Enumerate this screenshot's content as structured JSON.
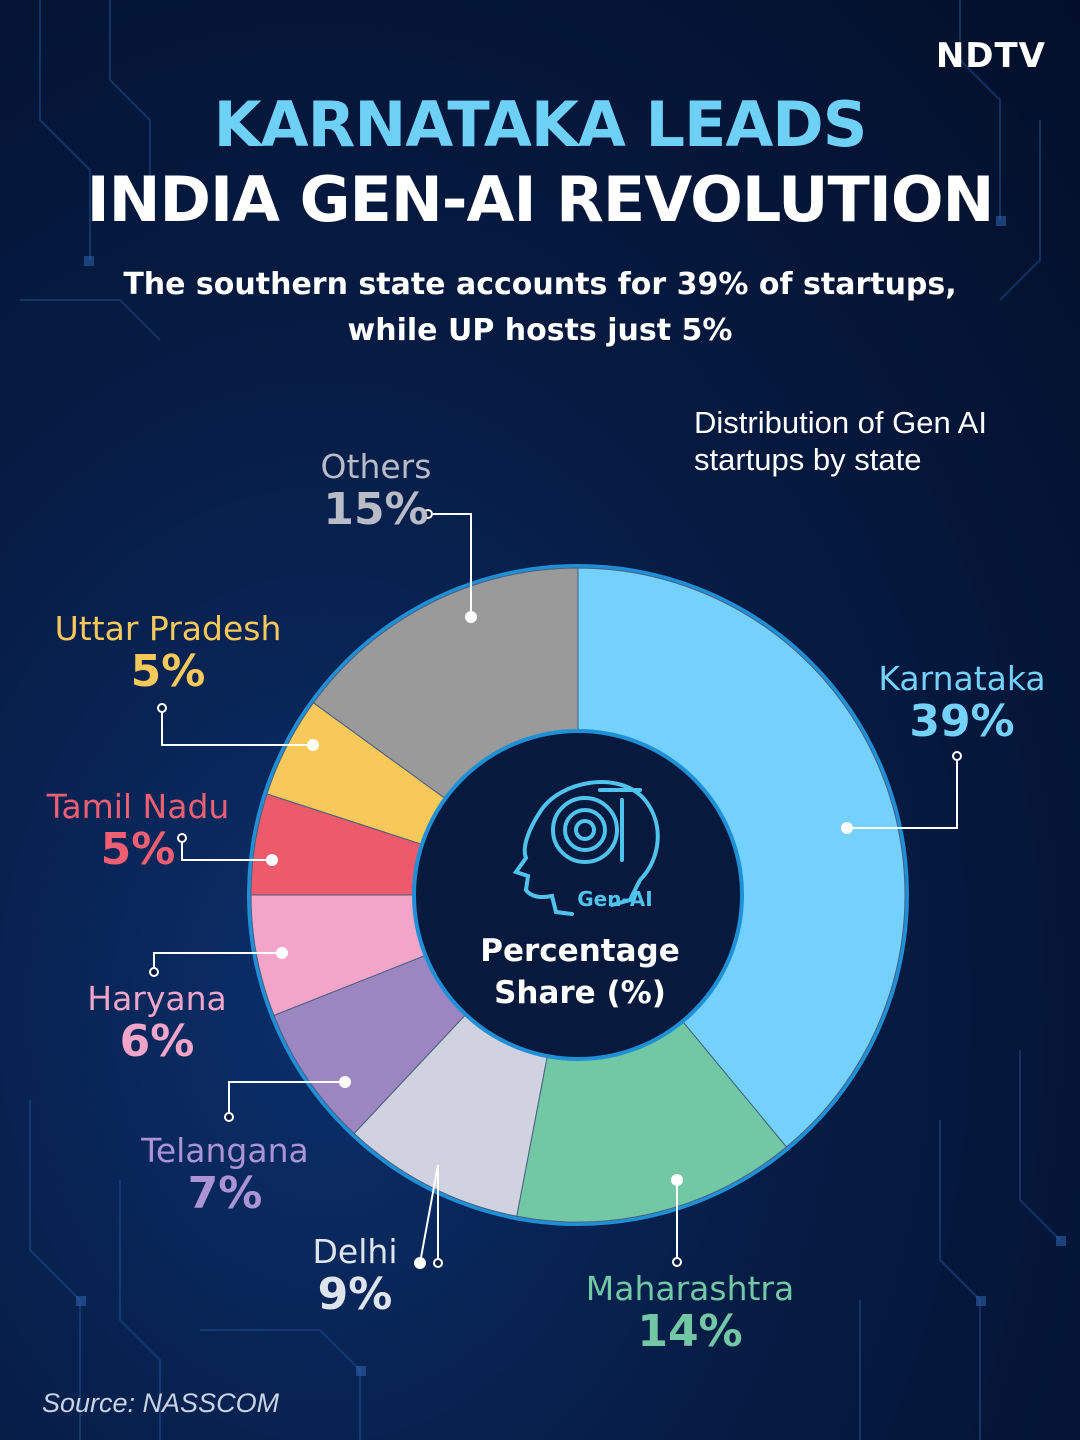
{
  "brand": {
    "logo": "NDTV",
    "logo_accent_color": "#e02020"
  },
  "header": {
    "title_line1": "KARNATAKA LEADS",
    "title_line2": "INDIA GEN-AI REVOLUTION",
    "subtitle_line1": "The southern state accounts for 39% of startups,",
    "subtitle_line2": "while UP hosts just 5%"
  },
  "chart_data": {
    "type": "pie",
    "variant": "donut",
    "title": "Distribution of Gen AI startups by state",
    "center_label_line1": "Percentage",
    "center_label_line2": "Share (%)",
    "center_icon_label": "Gen-AI",
    "unit": "%",
    "slices": [
      {
        "label": "Karnataka",
        "value": 39,
        "display": "39%",
        "color": "#74d1fb",
        "text_color": "#74d1fb"
      },
      {
        "label": "Maharashtra",
        "value": 14,
        "display": "14%",
        "color": "#72c7a4",
        "text_color": "#72c7a4"
      },
      {
        "label": "Delhi",
        "value": 9,
        "display": "9%",
        "color": "#d0d3df",
        "text_color": "#dfe3ec"
      },
      {
        "label": "Telangana",
        "value": 7,
        "display": "7%",
        "color": "#9c86c2",
        "text_color": "#ab93d6"
      },
      {
        "label": "Haryana",
        "value": 6,
        "display": "6%",
        "color": "#f2a5c8",
        "text_color": "#f2a5c8"
      },
      {
        "label": "Tamil Nadu",
        "value": 5,
        "display": "5%",
        "color": "#ec5a6c",
        "text_color": "#ef5f72"
      },
      {
        "label": "Uttar Pradesh",
        "value": 5,
        "display": "5%",
        "color": "#f8c95a",
        "text_color": "#f8c95a"
      },
      {
        "label": "Others",
        "value": 15,
        "display": "15%",
        "color": "#9a9a9a",
        "text_color": "#b9bcc6"
      }
    ]
  },
  "footer": {
    "source": "Source: NASSCOM"
  }
}
